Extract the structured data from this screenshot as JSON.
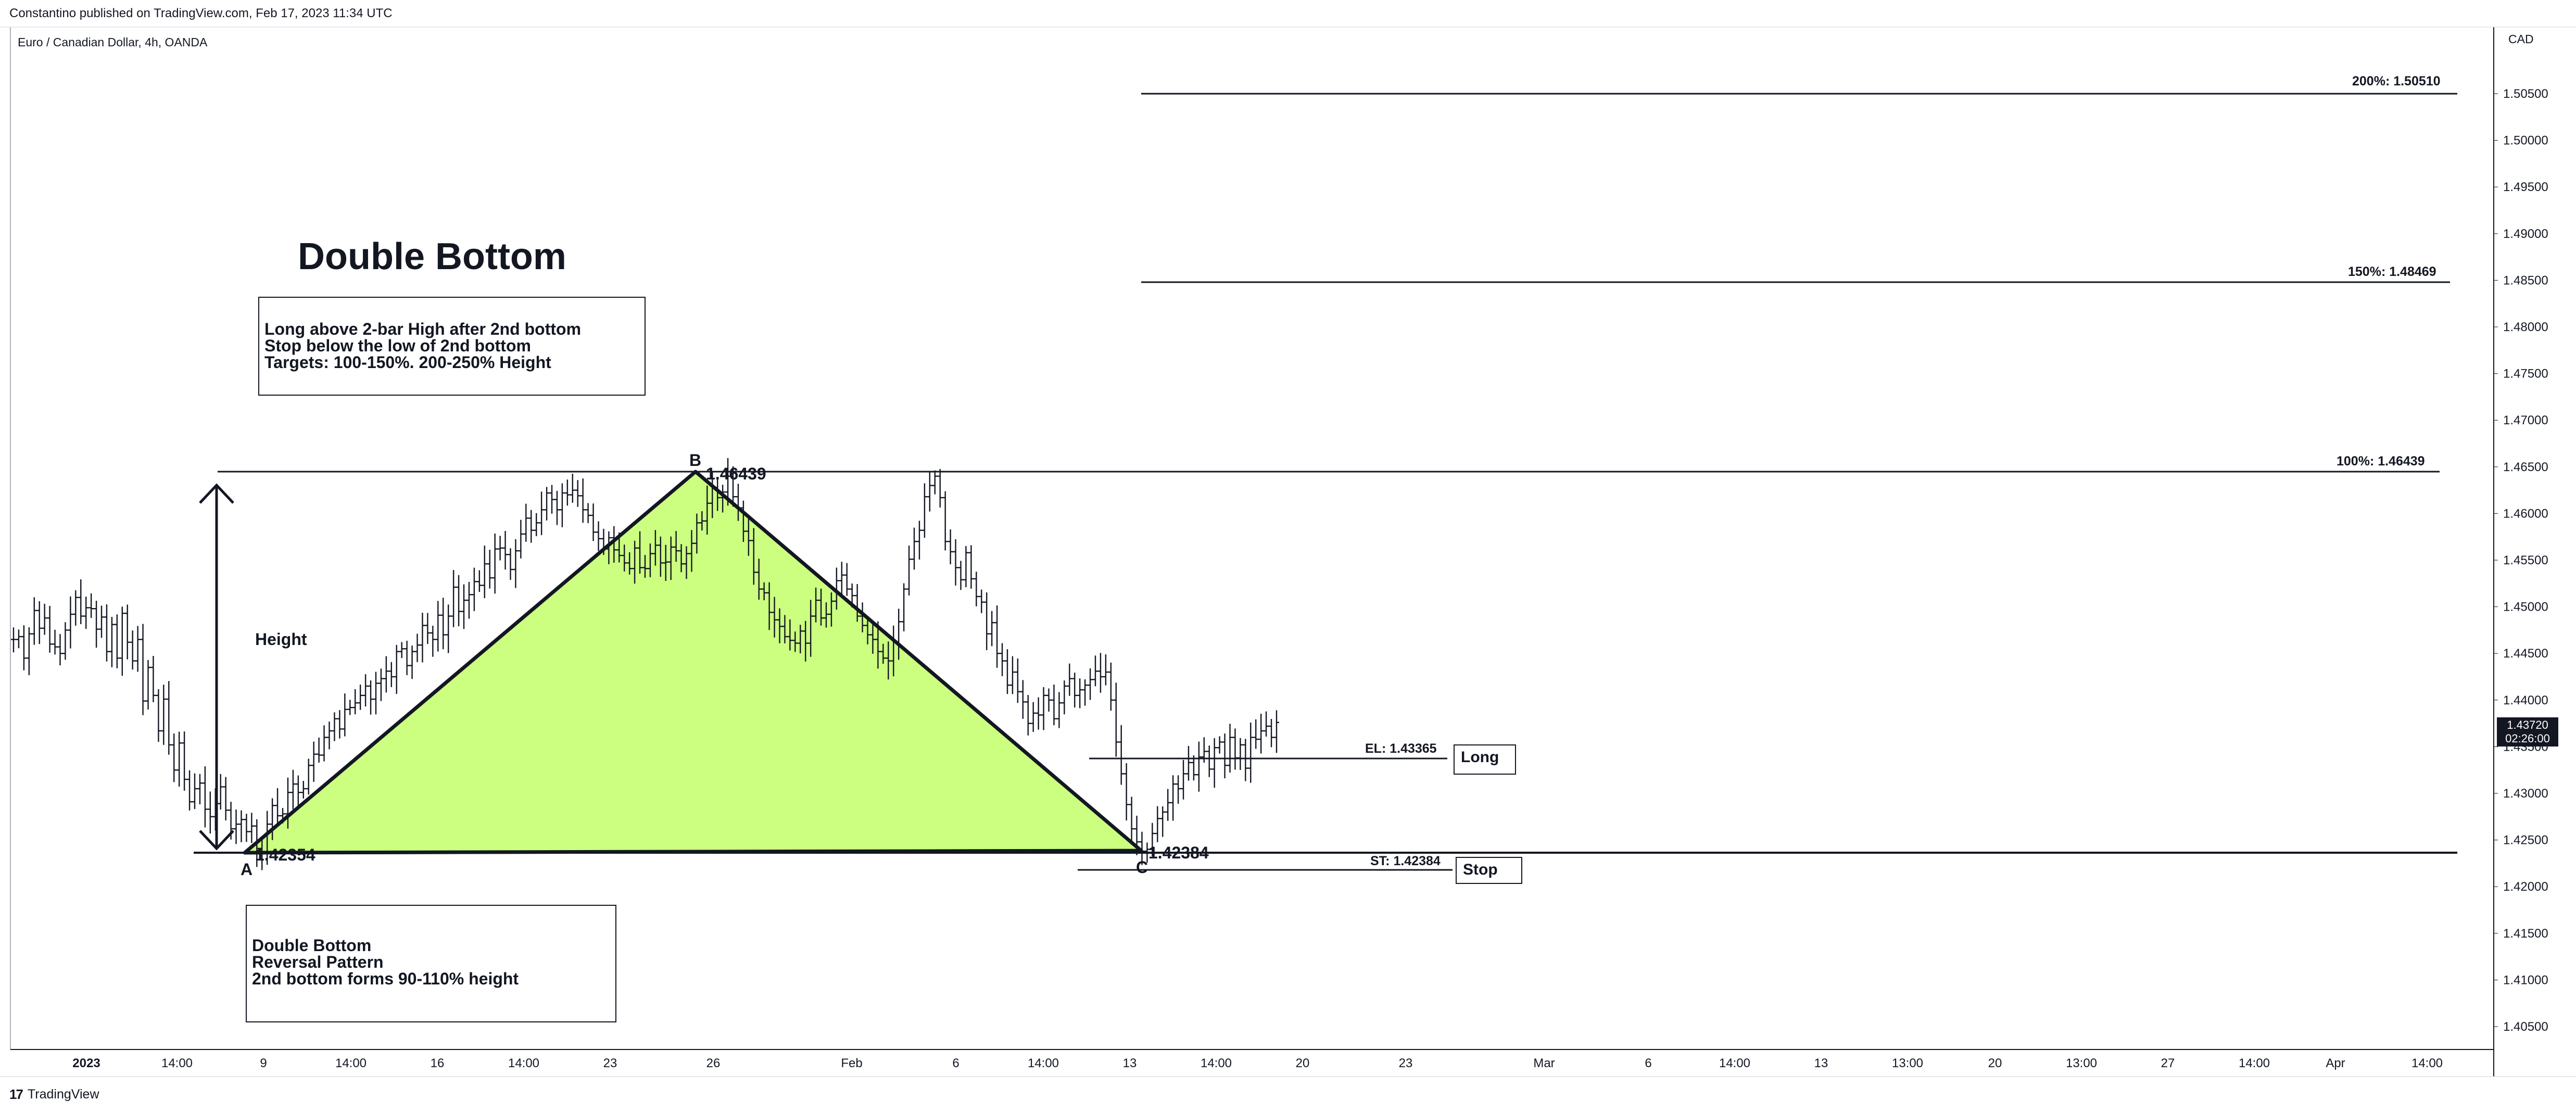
{
  "header": {
    "credit": "Constantino published on TradingView.com, Feb 17, 2023 11:34 UTC",
    "symbol": "Euro / Canadian Dollar, 4h, OANDA",
    "currency": "CAD"
  },
  "footer": {
    "logo_mark": "17",
    "logo_text": "TradingView"
  },
  "annotations": {
    "title": "Double Bottom",
    "rules": [
      "Long above 2-bar High after 2nd bottom",
      "Stop below the low of 2nd bottom",
      "Targets: 100-150%. 200-250% Height"
    ],
    "notes": [
      "Double Bottom",
      "Reversal Pattern",
      "2nd bottom forms 90-110% height"
    ],
    "height_label": "Height",
    "point_a": "A",
    "point_b": "B",
    "point_c": "C",
    "price_a": "1.42354",
    "price_b": "1.46439",
    "price_c": "1.42384",
    "level_200": "200%: 1.50510",
    "level_150": "150%: 1.48469",
    "level_100": "100%: 1.46439",
    "entry_level": "EL: 1.43365",
    "stop_level": "ST: 1.42384",
    "long_tag": "Long",
    "stop_tag": "Stop"
  },
  "price_tag": {
    "price": "1.43720",
    "countdown": "02:26:00"
  },
  "colors": {
    "pattern_fill": "#ccff80",
    "ink": "#131722",
    "background": "#ffffff"
  },
  "chart_data": {
    "type": "ohlc",
    "y_axis": {
      "range": [
        1.4025,
        1.514
      ],
      "ticks": [
        "1.50500",
        "1.50000",
        "1.49500",
        "1.49000",
        "1.48500",
        "1.48000",
        "1.47500",
        "1.47000",
        "1.46500",
        "1.46000",
        "1.45500",
        "1.45000",
        "1.44500",
        "1.44000",
        "1.43500",
        "1.43000",
        "1.42500",
        "1.42000",
        "1.41500",
        "1.41000",
        "1.40500"
      ]
    },
    "x_axis": {
      "ticks": [
        "2023",
        "14:00",
        "9",
        "14:00",
        "16",
        "14:00",
        "23",
        "26",
        "Feb",
        "6",
        "14:00",
        "13",
        "14:00",
        "20",
        "23",
        "Mar",
        "6",
        "14:00",
        "13",
        "13:00",
        "20",
        "13:00",
        "27",
        "14:00",
        "Apr",
        "14:00"
      ]
    },
    "pattern": {
      "A": {
        "bar": 48,
        "price": 1.42354
      },
      "B": {
        "bar": 136,
        "price": 1.46439
      },
      "C": {
        "bar": 214,
        "price": 1.42384
      }
    },
    "series_close": [
      1.4465,
      1.4468,
      1.4445,
      1.4471,
      1.4496,
      1.4477,
      1.4488,
      1.446,
      1.4457,
      1.445,
      1.4475,
      1.4492,
      1.451,
      1.449,
      1.4499,
      1.4498,
      1.4476,
      1.4489,
      1.4452,
      1.4481,
      1.4445,
      1.4493,
      1.4462,
      1.4442,
      1.4465,
      1.4399,
      1.4435,
      1.4405,
      1.4367,
      1.4401,
      1.4352,
      1.4325,
      1.4354,
      1.4315,
      1.4291,
      1.4305,
      1.4311,
      1.4283,
      1.4275,
      1.4289,
      1.4307,
      1.4282,
      1.4262,
      1.4267,
      1.4272,
      1.4259,
      1.4265,
      1.4241,
      1.4236,
      1.4267,
      1.4287,
      1.4276,
      1.4278,
      1.4301,
      1.431,
      1.4301,
      1.4305,
      1.433,
      1.4342,
      1.4341,
      1.436,
      1.4367,
      1.438,
      1.4369,
      1.439,
      1.4392,
      1.4397,
      1.4405,
      1.4415,
      1.4401,
      1.4418,
      1.4423,
      1.4431,
      1.4425,
      1.4452,
      1.4455,
      1.4437,
      1.4452,
      1.4459,
      1.448,
      1.4472,
      1.4465,
      1.4491,
      1.447,
      1.449,
      1.4521,
      1.4495,
      1.4507,
      1.4513,
      1.4527,
      1.4523,
      1.4546,
      1.4531,
      1.4562,
      1.4563,
      1.4556,
      1.454,
      1.456,
      1.4578,
      1.4595,
      1.4582,
      1.459,
      1.4604,
      1.4622,
      1.4615,
      1.4604,
      1.4622,
      1.462,
      1.4625,
      1.4619,
      1.4604,
      1.4598,
      1.458,
      1.4573,
      1.4562,
      1.4574,
      1.4561,
      1.4555,
      1.4547,
      1.4541,
      1.4563,
      1.4542,
      1.4541,
      1.4557,
      1.4566,
      1.4547,
      1.4548,
      1.4564,
      1.456,
      1.4546,
      1.4557,
      1.4568,
      1.459,
      1.4592,
      1.4611,
      1.4628,
      1.4617,
      1.4623,
      1.464,
      1.4618,
      1.4606,
      1.4581,
      1.4571,
      1.4537,
      1.4519,
      1.4515,
      1.4494,
      1.4486,
      1.4479,
      1.4468,
      1.4464,
      1.4461,
      1.4474,
      1.4461,
      1.449,
      1.4507,
      1.4488,
      1.4492,
      1.4506,
      1.4528,
      1.4534,
      1.4519,
      1.4512,
      1.449,
      1.448,
      1.447,
      1.4465,
      1.4452,
      1.4445,
      1.4442,
      1.4462,
      1.4484,
      1.4519,
      1.4551,
      1.457,
      1.4582,
      1.4618,
      1.463,
      1.464,
      1.4617,
      1.457,
      1.4559,
      1.4542,
      1.4529,
      1.4558,
      1.453,
      1.4511,
      1.4505,
      1.4471,
      1.4483,
      1.445,
      1.4442,
      1.4416,
      1.443,
      1.4409,
      1.4398,
      1.4375,
      1.4386,
      1.4384,
      1.4405,
      1.44,
      1.438,
      1.4397,
      1.4415,
      1.4423,
      1.4405,
      1.4411,
      1.4416,
      1.4422,
      1.4431,
      1.4425,
      1.443,
      1.44,
      1.4355,
      1.4321,
      1.4288,
      1.4262,
      1.4248,
      1.4238,
      1.424,
      1.4257,
      1.4273,
      1.428,
      1.429,
      1.431,
      1.4305,
      1.4321,
      1.4333,
      1.432,
      1.4339,
      1.4345,
      1.4326,
      1.4349,
      1.4355,
      1.433,
      1.436,
      1.4338,
      1.4352,
      1.4327,
      1.436,
      1.4358,
      1.4367,
      1.4372,
      1.436,
      1.4376
    ]
  }
}
